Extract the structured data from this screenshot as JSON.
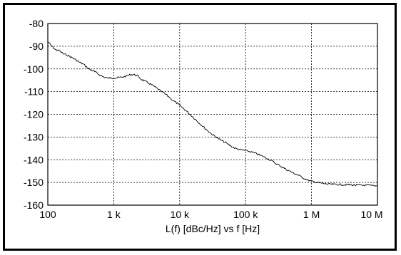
{
  "chart_data": {
    "type": "line",
    "title": "",
    "xlabel": "L(f)  [dBc/Hz] vs f [Hz]",
    "ylabel": "",
    "x_scale": "log",
    "xlim": [
      100,
      10000000
    ],
    "ylim": [
      -160,
      -80
    ],
    "grid": true,
    "x_ticks": [
      {
        "value": 100,
        "label": "100"
      },
      {
        "value": 1000,
        "label": "1 k"
      },
      {
        "value": 10000,
        "label": "10 k"
      },
      {
        "value": 100000,
        "label": "100 k"
      },
      {
        "value": 1000000,
        "label": "1 M"
      },
      {
        "value": 10000000,
        "label": "10 M"
      }
    ],
    "y_ticks": [
      {
        "value": -80,
        "label": "-80"
      },
      {
        "value": -90,
        "label": "-90"
      },
      {
        "value": -100,
        "label": "-100"
      },
      {
        "value": -110,
        "label": "-110"
      },
      {
        "value": -120,
        "label": "-120"
      },
      {
        "value": -130,
        "label": "-130"
      },
      {
        "value": -140,
        "label": "-140"
      },
      {
        "value": -150,
        "label": "-150"
      },
      {
        "value": -160,
        "label": "-160"
      }
    ],
    "series": [
      {
        "color": "#000000",
        "x": [
          100,
          115,
          130,
          150,
          175,
          200,
          250,
          300,
          350,
          400,
          450,
          500,
          600,
          700,
          800,
          900,
          1000,
          1200,
          1400,
          1600,
          1800,
          2000,
          2300,
          2600,
          3000,
          3500,
          4000,
          4500,
          5000,
          6000,
          7000,
          8000,
          9000,
          10000,
          12000,
          15000,
          20000,
          25000,
          30000,
          40000,
          50000,
          60000,
          70000,
          80000,
          100000,
          120000,
          150000,
          200000,
          250000,
          300000,
          400000,
          500000,
          600000,
          700000,
          800000,
          1000000,
          1200000,
          1500000,
          2000000,
          3000000,
          5000000,
          7000000,
          10000000
        ],
        "values": [
          -88,
          -90,
          -91.5,
          -92,
          -93.5,
          -94,
          -95.5,
          -97,
          -98,
          -99.5,
          -100.5,
          -101,
          -102.5,
          -103.5,
          -104,
          -104,
          -104,
          -103.8,
          -103.5,
          -103,
          -102.5,
          -102.5,
          -103,
          -104.5,
          -105.5,
          -106.5,
          -107.5,
          -108.5,
          -109.5,
          -111,
          -112.5,
          -114,
          -115,
          -116,
          -118,
          -120.5,
          -124,
          -126.5,
          -128.5,
          -131,
          -132.5,
          -134,
          -135,
          -135.5,
          -136,
          -136.5,
          -137.5,
          -139,
          -140.5,
          -142,
          -144,
          -145.5,
          -146.5,
          -147.5,
          -148.5,
          -149.5,
          -150,
          -150.5,
          -150.8,
          -151,
          -151.2,
          -151.3,
          -151.5
        ]
      }
    ]
  }
}
